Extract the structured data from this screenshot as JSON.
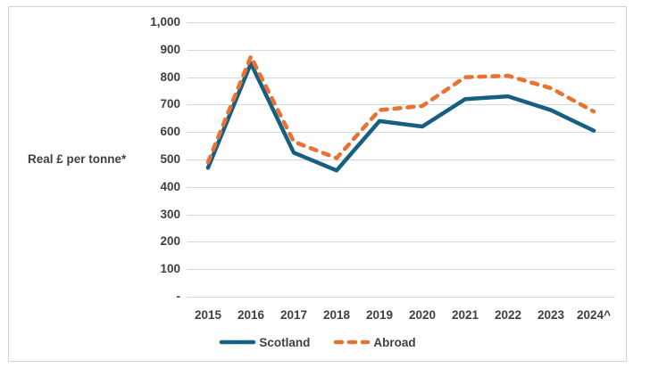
{
  "figure": {
    "background_color": "#ffffff",
    "frame_border_color": "#d3d3d3"
  },
  "chart_data": {
    "type": "line",
    "title": "",
    "xlabel": "",
    "ylabel": "Real £ per tonne*",
    "categories": [
      "2015",
      "2016",
      "2017",
      "2018",
      "2019",
      "2020",
      "2021",
      "2022",
      "2023",
      "2024^"
    ],
    "series": [
      {
        "name": "Scotland",
        "color": "#156082",
        "line_style": "solid",
        "values": [
          470,
          850,
          525,
          460,
          640,
          620,
          720,
          730,
          680,
          605
        ]
      },
      {
        "name": "Abroad",
        "color": "#E97132",
        "line_style": "dashed",
        "values": [
          490,
          875,
          565,
          505,
          680,
          695,
          800,
          805,
          760,
          675
        ]
      }
    ],
    "ylim": [
      0,
      1000
    ],
    "ytick_step": 100,
    "ytick_labels": [
      "-",
      "100",
      "200",
      "300",
      "400",
      "500",
      "600",
      "700",
      "800",
      "900",
      "1,000"
    ],
    "grid": "horizontal",
    "gridline_color": "#d9d9d9",
    "tick_label_color": "#404040",
    "legend_position": "bottom"
  }
}
